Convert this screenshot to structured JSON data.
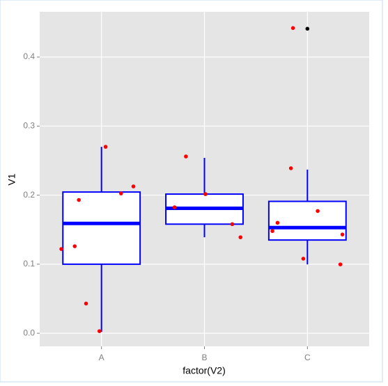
{
  "chart_data": {
    "type": "box",
    "x_label": "factor(V2)",
    "y_label": "V1",
    "categories": [
      "A",
      "B",
      "C"
    ],
    "xlim": [
      0.4,
      3.6
    ],
    "ylim": [
      -0.019,
      0.4655
    ],
    "yticks": [
      {
        "value": 0,
        "label": "0.0"
      },
      0.1,
      0.2,
      0.3,
      0.4
    ],
    "grid": true,
    "box_color": "#0000ff",
    "boxes": [
      {
        "whislo": 0.002,
        "q1": 0.1,
        "med": 0.159,
        "q3": 0.2045,
        "whishi": 0.27,
        "outliers": []
      },
      {
        "whislo": 0.139,
        "q1": 0.158,
        "med": 0.181,
        "q3": 0.2015,
        "whishi": 0.254,
        "outliers": []
      },
      {
        "whislo": 0.0997,
        "q1": 0.135,
        "med": 0.153,
        "q3": 0.191,
        "whishi": 0.237,
        "outliers": [
          0.441
        ]
      }
    ],
    "outlier_color": "#000000",
    "points": {
      "color": "#ff0000",
      "x": [
        0.61,
        0.74,
        0.78,
        0.85,
        0.98,
        1.04,
        1.19,
        1.31,
        1.71,
        1.82,
        2.01,
        2.27,
        2.35,
        2.66,
        2.71,
        2.84,
        2.86,
        2.96,
        3.1,
        3.32,
        3.34
      ],
      "y": [
        0.122,
        0.126,
        0.193,
        0.043,
        0.003,
        0.27,
        0.2025,
        0.2126,
        0.1824,
        0.256,
        0.2015,
        0.158,
        0.139,
        0.148,
        0.16,
        0.239,
        0.442,
        0.108,
        0.177,
        0.0997,
        0.143
      ]
    }
  }
}
